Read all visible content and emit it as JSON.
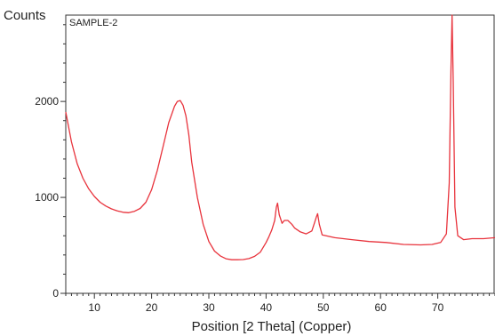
{
  "chart_data": {
    "type": "line",
    "title": "",
    "sample_label": "SAMPLE-2",
    "ylabel": "Counts",
    "xlabel": "Position [2 Theta] (Copper)",
    "xlim": [
      5,
      80
    ],
    "ylim": [
      0,
      2900
    ],
    "x_ticks": [
      10,
      20,
      30,
      40,
      50,
      60,
      70
    ],
    "y_ticks": [
      0,
      1000,
      2000
    ],
    "grid": false,
    "legend": "none",
    "series": [
      {
        "color": "#e8333c",
        "x": [
          5,
          6,
          7,
          8,
          9,
          10,
          11,
          12,
          13,
          14,
          15,
          16,
          17,
          18,
          19,
          20,
          21,
          22,
          23,
          24,
          24.5,
          25,
          25.5,
          26,
          26.5,
          27,
          28,
          29,
          30,
          31,
          32,
          33,
          34,
          35,
          36,
          37,
          38,
          39,
          40,
          40.5,
          41,
          41.5,
          41.8,
          42,
          42.3,
          42.8,
          43.2,
          43.8,
          44.5,
          45,
          46,
          47,
          48,
          48.5,
          48.8,
          49,
          49.3,
          49.8,
          50.5,
          52,
          55,
          58,
          61,
          64,
          67,
          69,
          70.5,
          71.5,
          72,
          72.3,
          72.5,
          72.7,
          73,
          73.5,
          74.5,
          76,
          78,
          80
        ],
        "y": [
          1890,
          1580,
          1350,
          1200,
          1090,
          1010,
          950,
          910,
          880,
          860,
          845,
          840,
          855,
          885,
          950,
          1080,
          1280,
          1530,
          1780,
          1950,
          2000,
          2010,
          1960,
          1850,
          1650,
          1370,
          1000,
          720,
          540,
          440,
          390,
          360,
          350,
          350,
          352,
          362,
          385,
          430,
          530,
          590,
          660,
          760,
          900,
          940,
          820,
          730,
          760,
          760,
          720,
          680,
          640,
          620,
          650,
          740,
          800,
          830,
          720,
          610,
          600,
          580,
          560,
          540,
          530,
          510,
          505,
          510,
          530,
          620,
          1150,
          2300,
          2900,
          2200,
          900,
          600,
          560,
          570,
          570,
          580
        ]
      }
    ]
  }
}
